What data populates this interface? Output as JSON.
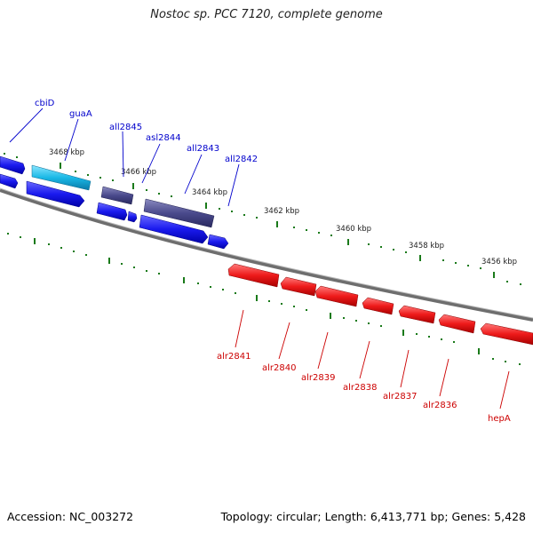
{
  "title": "Nostoc sp. PCC 7120, complete genome",
  "footer": {
    "accession": "Accession: NC_003272",
    "topology": "Topology: circular; Length: 6,413,771 bp; Genes: 5,428"
  },
  "colors": {
    "forward_gene": "#1a1aee",
    "forward_gene_light": "#1ab8e6",
    "forward_gene_dark": "#4a4a8c",
    "reverse_gene": "#ee1a1a",
    "backbone": "#7a7a7a",
    "tick": "#1a7a1a",
    "forward_label": "#0000cc",
    "reverse_label": "#cc0000"
  },
  "kbp_labels": [
    "3468 kbp",
    "3466 kbp",
    "3464 kbp",
    "3462 kbp",
    "3460 kbp",
    "3458 kbp",
    "3456 kbp"
  ],
  "forward_genes": [
    "cbiD",
    "guaA",
    "all2845",
    "asl2844",
    "all2843",
    "all2842"
  ],
  "reverse_genes": [
    "alr2841",
    "alr2840",
    "alr2839",
    "alr2838",
    "alr2837",
    "alr2836",
    "hepA"
  ]
}
